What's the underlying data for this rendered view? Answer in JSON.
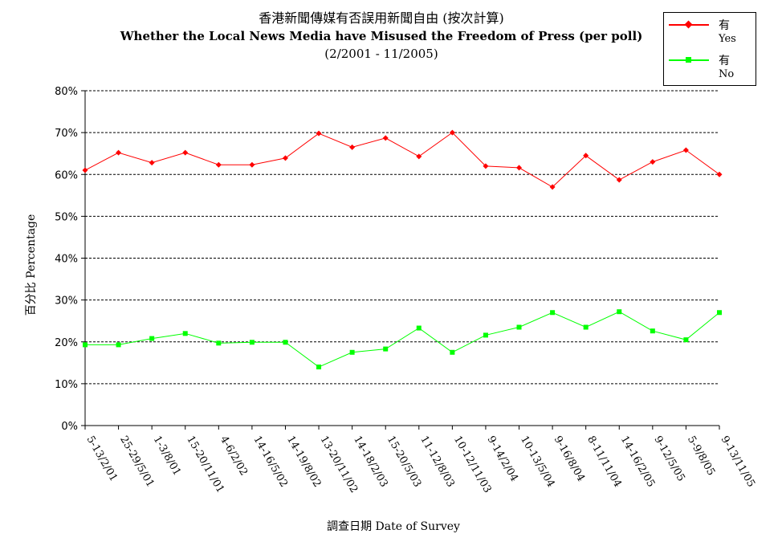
{
  "chart_data": {
    "type": "line",
    "title": "香港新聞傳媒有否誤用新聞自由 (按次計算)",
    "subtitle": "Whether the Local News Media have Misused the Freedom of Press (per poll)",
    "period": "(2/2001 - 11/2005)",
    "ylabel": "百分比 Percentage",
    "xlabel": "調查日期 Date of Survey",
    "ylim": [
      0,
      80
    ],
    "yticks": [
      "0%",
      "10%",
      "20%",
      "30%",
      "40%",
      "50%",
      "60%",
      "70%",
      "80%"
    ],
    "grid": true,
    "legend_position": "top-right",
    "categories": [
      "5-13/2/01",
      "25-29/5/01",
      "1-3/8/01",
      "15-20/11/01",
      "4-6/2/02",
      "14-16/5/02",
      "14-19/8/02",
      "13-20/11/02",
      "14-18/2/03",
      "15-20/5/03",
      "11-12/8/03",
      "10-12/11/03",
      "9-14/2/04",
      "10-13/5/04",
      "9-16/8/04",
      "8-11/11/04",
      "14-16/2/05",
      "9-12/5/05",
      "5-9/8/05",
      "9-13/11/05"
    ],
    "series": [
      {
        "name": "有",
        "name_en": "Yes",
        "color": "#ff0000",
        "marker": "diamond",
        "values": [
          61.0,
          65.2,
          62.8,
          65.2,
          62.3,
          62.3,
          63.9,
          69.8,
          66.5,
          68.7,
          64.3,
          70.0,
          62.0,
          61.6,
          57.0,
          64.5,
          58.7,
          63.0,
          65.8,
          60.0
        ]
      },
      {
        "name": "有",
        "name_en": "No",
        "color": "#00ff00",
        "marker": "square",
        "values": [
          19.3,
          19.3,
          20.8,
          22.0,
          19.7,
          19.9,
          19.9,
          14.0,
          17.5,
          18.3,
          23.3,
          17.5,
          21.6,
          23.5,
          27.0,
          23.5,
          27.2,
          22.6,
          20.5,
          27.0
        ]
      }
    ]
  }
}
